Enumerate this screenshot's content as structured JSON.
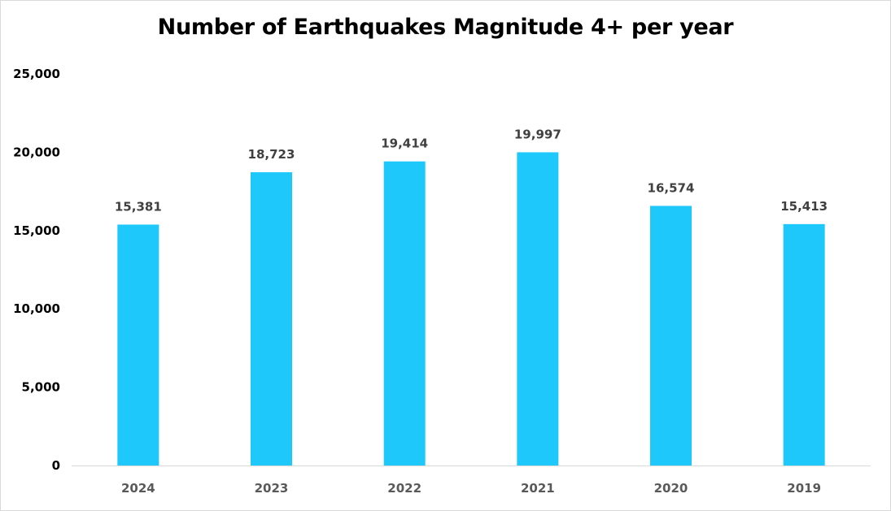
{
  "chart_data": {
    "type": "bar",
    "title": "Number of Earthquakes Magnitude 4+ per year",
    "xlabel": "",
    "ylabel": "",
    "categories": [
      "2024",
      "2023",
      "2022",
      "2021",
      "2020",
      "2019"
    ],
    "values": [
      15381,
      18723,
      19414,
      19997,
      16574,
      15413
    ],
    "data_labels": [
      "15,381",
      "18,723",
      "19,414",
      "19,997",
      "16,574",
      "15,413"
    ],
    "ylim": [
      0,
      25000
    ],
    "yticks": [
      0,
      5000,
      10000,
      15000,
      20000,
      25000
    ],
    "ytick_labels": [
      "0",
      "5,000",
      "10,000",
      "15,000",
      "20,000",
      "25,000"
    ],
    "grid": false,
    "legend": "none",
    "bar_color": "#1EC8FA",
    "axis_color": "#d9d9d9"
  }
}
